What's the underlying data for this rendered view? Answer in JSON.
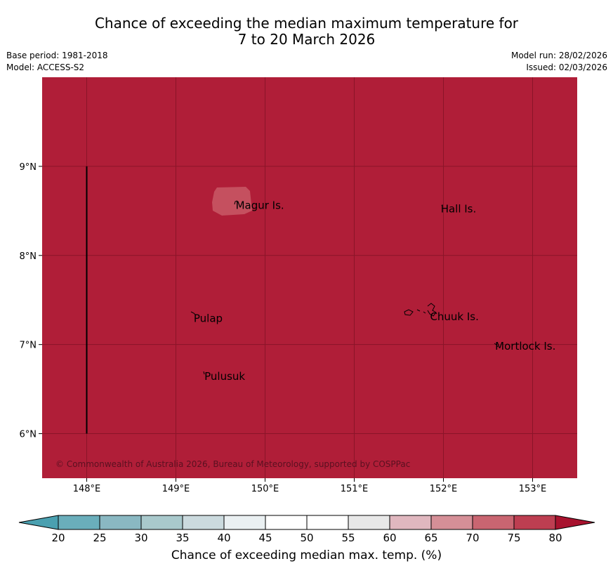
{
  "header": {
    "title_line1": "Chance of exceeding the median maximum temperature for",
    "title_line2": "7 to 20 March 2026",
    "base_period": "Base period: 1981-2018",
    "model": "Model: ACCESS-S2",
    "model_run": "Model run: 28/02/2026",
    "issued": "Issued: 02/03/2026"
  },
  "map": {
    "background_color": "#b01e38",
    "patch_color": "#c5505f",
    "lon_ticks": [
      "148°E",
      "149°E",
      "150°E",
      "151°E",
      "152°E",
      "153°E"
    ],
    "lon_values": [
      148,
      149,
      150,
      151,
      152,
      153
    ],
    "lat_ticks": [
      "9°N",
      "8°N",
      "7°N",
      "6°N"
    ],
    "lat_values": [
      9,
      8,
      7,
      6
    ],
    "lon_range": [
      147.5,
      153.5
    ],
    "lat_range": [
      5.5,
      10
    ],
    "places": [
      {
        "name": "Magur Is.",
        "lon": 149.67,
        "lat": 8.57
      },
      {
        "name": "Hall Is.",
        "lon": 151.97,
        "lat": 8.53
      },
      {
        "name": "Pulap",
        "lon": 149.2,
        "lat": 7.3
      },
      {
        "name": "Chuuk Is.",
        "lon": 151.85,
        "lat": 7.32
      },
      {
        "name": "Mortlock Is.",
        "lon": 152.58,
        "lat": 6.99
      },
      {
        "name": "Pulusuk",
        "lon": 149.32,
        "lat": 6.65
      }
    ],
    "boundary_line": {
      "lon": 148,
      "lat_range": [
        6,
        9
      ]
    },
    "copyright": "© Commonwealth of Australia 2026, Bureau of Meteorology, supported by COSPPac"
  },
  "colorbar": {
    "label": "Chance of exceeding median max. temp. (%)",
    "ticks": [
      "20",
      "25",
      "30",
      "35",
      "40",
      "45",
      "50",
      "55",
      "60",
      "65",
      "70",
      "75",
      "80"
    ],
    "colors": [
      "#6aaebb",
      "#8ab8c2",
      "#a9c9cc",
      "#cbdade",
      "#eaf0f2",
      "#ffffff",
      "#ffffff",
      "#e8e8e8",
      "#e0b7bf",
      "#d58f97",
      "#c96571",
      "#bd3e51"
    ],
    "low_color": "#4aa0b0",
    "high_color": "#a8122e"
  }
}
